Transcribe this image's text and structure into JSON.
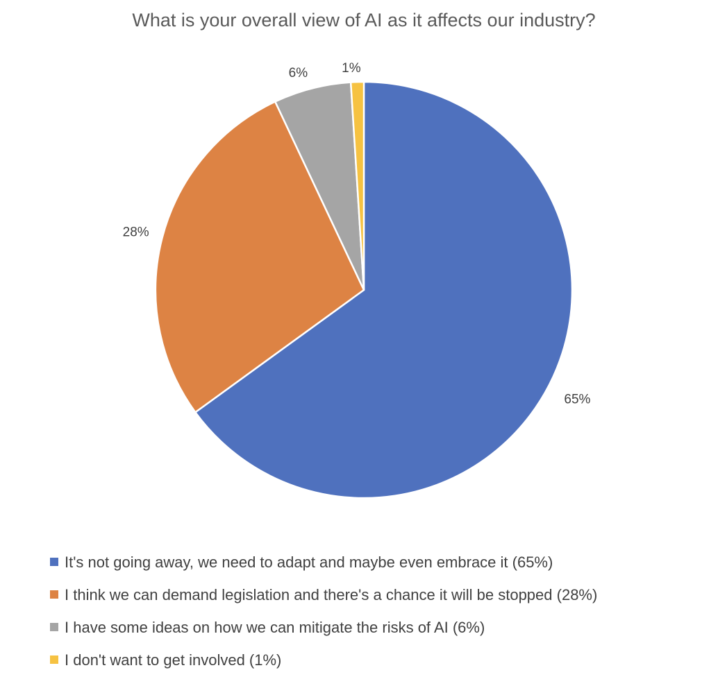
{
  "chart_data": {
    "type": "pie",
    "title": "What is your overall view of AI as it affects our industry?",
    "categories": [
      "It's not going away, we need to adapt and maybe even embrace it (65%)",
      "I think we can demand legislation and there's a chance it will be stopped (28%)",
      "I have some ideas on how we can mitigate the risks of AI (6%)",
      "I don't want to get involved (1%)"
    ],
    "values": [
      65,
      28,
      6,
      1
    ],
    "labels": [
      "65%",
      "28%",
      "6%",
      "1%"
    ],
    "colors": [
      "#4F71BE",
      "#DD8344",
      "#A5A5A5",
      "#F6C242"
    ],
    "start_angle": "12 o'clock",
    "direction": "clockwise",
    "legend_position": "bottom-left"
  }
}
